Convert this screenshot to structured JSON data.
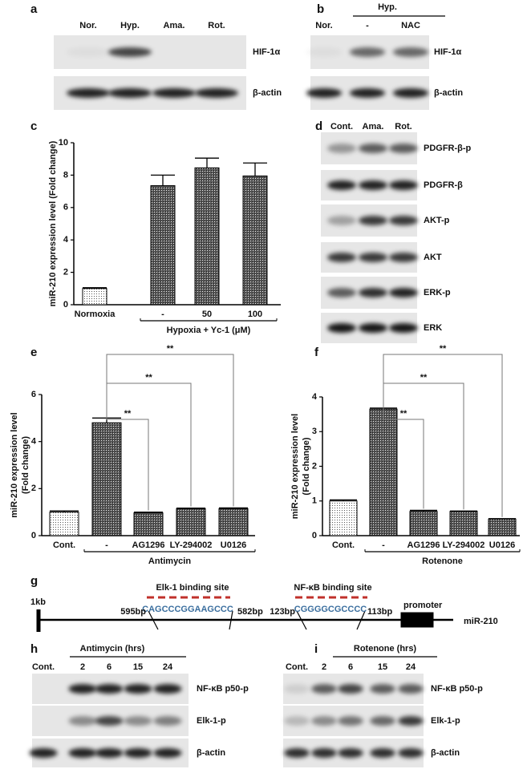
{
  "panels": {
    "a": {
      "label": "a",
      "lanes": [
        "Nor.",
        "Hyp.",
        "Ama.",
        "Rot."
      ],
      "rows": [
        "HIF-1α",
        "β-actin"
      ]
    },
    "b": {
      "label": "b",
      "group": "Hyp.",
      "lanes": [
        "Nor.",
        "-",
        "NAC"
      ],
      "rows": [
        "HIF-1α",
        "β-actin"
      ]
    },
    "d": {
      "label": "d",
      "lanes": [
        "Cont.",
        "Ama.",
        "Rot."
      ],
      "rows": [
        "PDGFR-β-p",
        "PDGFR-β",
        "AKT-p",
        "AKT",
        "ERK-p",
        "ERK"
      ]
    },
    "g": {
      "label": "g",
      "scale": "1kb",
      "sites": [
        {
          "name": "Elk-1 binding site",
          "sequence": "CAGCCCGGAAGCCC",
          "start": "595bp",
          "end": "582bp"
        },
        {
          "name": "NF-κB binding site",
          "sequence": "CGGGGCGCCCC",
          "start": "123bp",
          "end": "113bp"
        }
      ],
      "promoter": "promoter",
      "gene": "miR-210"
    },
    "h": {
      "label": "h",
      "treatment": "Antimycin (hrs)",
      "lanes": [
        "Cont.",
        "2",
        "6",
        "15",
        "24"
      ],
      "rows": [
        "NF-κB p50-p",
        "Elk-1-p",
        "β-actin"
      ]
    },
    "i": {
      "label": "i",
      "treatment": "Rotenone (hrs)",
      "lanes": [
        "Cont.",
        "2",
        "6",
        "15",
        "24"
      ],
      "rows": [
        "NF-κB p50-p",
        "Elk-1-p",
        "β-actin"
      ]
    }
  },
  "chart_data": [
    {
      "type": "bar",
      "label": "c",
      "ylabel": "miR-210 expression level  (Fold change)",
      "categories": [
        "Normoxia",
        "-",
        "50",
        "100"
      ],
      "values": [
        1.0,
        7.35,
        8.45,
        7.95
      ],
      "errors": [
        0.05,
        0.65,
        0.6,
        0.8
      ],
      "group_label": "Hypoxia + Yc-1  (μM)",
      "ylim": [
        0,
        10
      ],
      "yticks": [
        0,
        2,
        4,
        6,
        8,
        10
      ]
    },
    {
      "type": "bar",
      "label": "e",
      "ylabel": [
        "miR-210 expression level",
        "(Fold change)"
      ],
      "categories": [
        "Cont.",
        "-",
        "AG1296",
        "LY-294002",
        "U0126"
      ],
      "values": [
        1.0,
        4.8,
        0.97,
        1.15,
        1.15
      ],
      "errors": [
        0.05,
        0.2,
        0.03,
        0.02,
        0.03
      ],
      "group_label": "Antimycin",
      "annotations": [
        "**",
        "**",
        "**"
      ],
      "ylim": [
        0,
        6
      ],
      "yticks": [
        0,
        2,
        4,
        6
      ]
    },
    {
      "type": "bar",
      "label": "f",
      "ylabel": [
        "miR-210 expression level",
        "(Fold change)"
      ],
      "categories": [
        "Cont.",
        "-",
        "AG1296",
        "LY-294002",
        "U0126"
      ],
      "values": [
        1.0,
        3.65,
        0.7,
        0.7,
        0.48
      ],
      "errors": [
        0.03,
        0.03,
        0.03,
        0.01,
        0.01
      ],
      "group_label": "Rotenone",
      "annotations": [
        "**",
        "**",
        "**"
      ],
      "ylim": [
        0,
        4
      ],
      "yticks": [
        0,
        1,
        2,
        3,
        4
      ]
    }
  ]
}
